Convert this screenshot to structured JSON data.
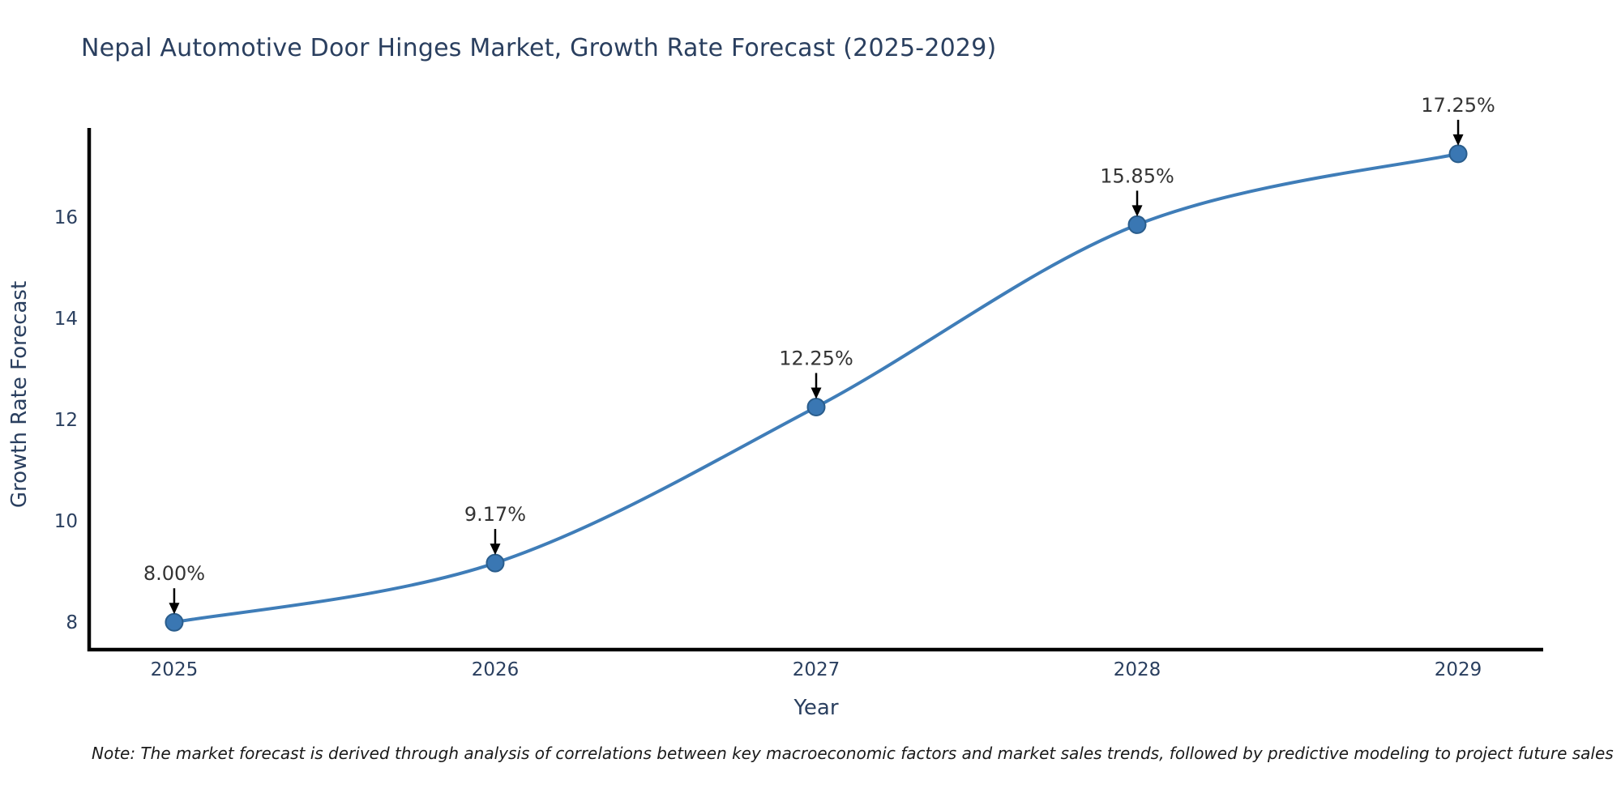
{
  "title": "Nepal Automotive Door Hinges Market, Growth Rate Forecast (2025-2029)",
  "note": "Note: The market forecast is derived through analysis of correlations between key macroeconomic factors and market sales trends, followed by predictive modeling to project future sales",
  "chart_data": {
    "type": "line",
    "title": "Nepal Automotive Door Hinges Market, Growth Rate Forecast (2025-2029)",
    "xlabel": "Year",
    "ylabel": "Growth Rate Forecast",
    "x": [
      2025,
      2026,
      2027,
      2028,
      2029
    ],
    "values": [
      8.0,
      9.17,
      12.25,
      15.85,
      17.25
    ],
    "point_labels": [
      "8.00%",
      "9.17%",
      "12.25%",
      "15.85%",
      "17.25%"
    ],
    "xticks": [
      "2025",
      "2026",
      "2027",
      "2028",
      "2029"
    ],
    "yticks": [
      8,
      10,
      12,
      14,
      16
    ],
    "xlim": [
      2024.735,
      2029.265
    ],
    "ylim": [
      7.46,
      17.76
    ],
    "line_shape": "spline",
    "grid": false,
    "legend": "none",
    "colors": {
      "line": "#3f7db8",
      "marker_fill": "#3a77b3",
      "marker_edge": "#2a5d8c",
      "axis": "#000000",
      "tick_text": "#2a3f5f",
      "annotation_text": "#333333",
      "arrow": "#000000",
      "background": "#ffffff"
    }
  }
}
